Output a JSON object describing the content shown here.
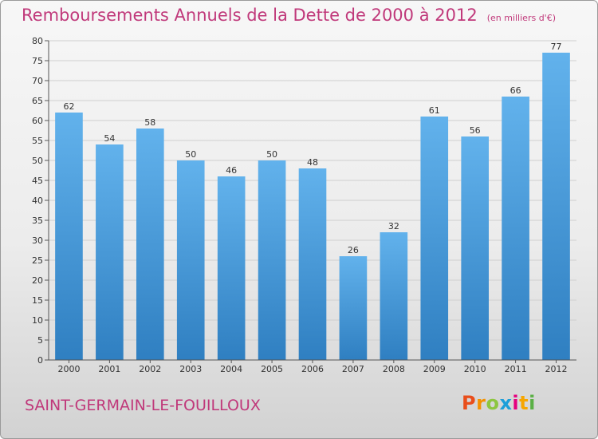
{
  "header": {
    "title": "Remboursements Annuels de la Dette de 2000 à 2012",
    "unit": "(en milliers d'€)"
  },
  "footer": {
    "commune": "SAINT-GERMAIN-LE-FOUILLOUX",
    "logo_letters": [
      "P",
      "r",
      "o",
      "x",
      "i",
      "t",
      "i"
    ],
    "logo_colors": [
      "#e94e1b",
      "#f39200",
      "#8dc63f",
      "#1d9fd9",
      "#e5007e",
      "#f7a600",
      "#5bb046"
    ]
  },
  "colors": {
    "title": "#c0387a",
    "bar_light": "#62b2ec",
    "bar_dark": "#2f7fc1",
    "grid": "#cfcfcf",
    "axis": "#555555"
  },
  "chart_data": {
    "type": "bar",
    "categories": [
      "2000",
      "2001",
      "2002",
      "2003",
      "2004",
      "2005",
      "2006",
      "2007",
      "2008",
      "2009",
      "2010",
      "2011",
      "2012"
    ],
    "values": [
      62,
      54,
      58,
      50,
      46,
      50,
      48,
      26,
      32,
      61,
      56,
      66,
      77
    ],
    "ylim": [
      0,
      80
    ],
    "yticks": [
      0,
      5,
      10,
      15,
      20,
      25,
      30,
      35,
      40,
      45,
      50,
      55,
      60,
      65,
      70,
      75,
      80
    ],
    "grid": true,
    "data_labels": true
  }
}
